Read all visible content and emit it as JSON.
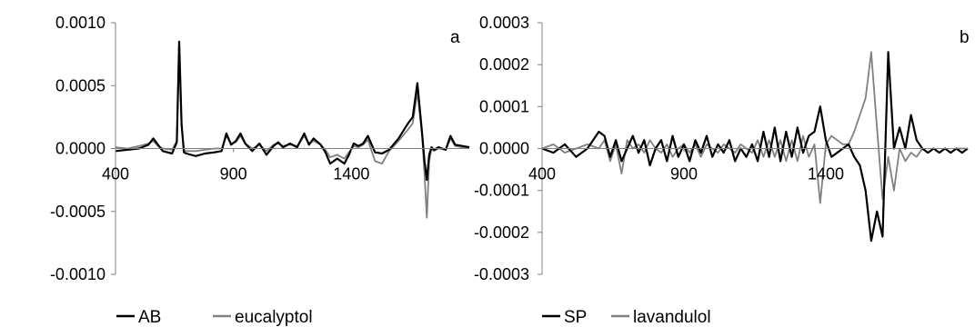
{
  "chart_data": [
    {
      "type": "line",
      "panel_label": "a",
      "xlim": [
        400,
        1900
      ],
      "x_ticks": [
        400,
        900,
        1400
      ],
      "ylim": [
        -0.001,
        0.001
      ],
      "y_ticks": [
        0.001,
        0.0005,
        0.0,
        -0.0005,
        -0.001
      ],
      "y_tick_labels": [
        "0.0010",
        "0.0005",
        "0.0000",
        "-0.0005",
        "-0.0010"
      ],
      "x_tick_labels": [
        "400",
        "900",
        "1400"
      ],
      "grid": false,
      "legend_position": "bottom-left",
      "series": [
        {
          "name": "AB",
          "color": "#000000",
          "x": [
            400,
            450,
            500,
            540,
            560,
            580,
            600,
            640,
            660,
            670,
            680,
            690,
            700,
            740,
            780,
            820,
            850,
            870,
            890,
            910,
            930,
            950,
            980,
            1010,
            1040,
            1070,
            1090,
            1110,
            1140,
            1170,
            1200,
            1220,
            1240,
            1270,
            1290,
            1310,
            1340,
            1370,
            1390,
            1410,
            1430,
            1450,
            1470,
            1500,
            1530,
            1560,
            1600,
            1640,
            1660,
            1680,
            1700,
            1710,
            1720,
            1730,
            1740,
            1750,
            1770,
            1800,
            1820,
            1840,
            1870,
            1900
          ],
          "y": [
            -2e-05,
            -1e-05,
            0.0,
            3e-05,
            8e-05,
            3e-05,
            -2e-05,
            -4e-05,
            5e-05,
            0.00085,
            0.0002,
            -3e-05,
            -4e-05,
            -6e-05,
            -4e-05,
            -3e-05,
            -2e-05,
            0.00012,
            3e-05,
            6e-05,
            0.00012,
            4e-05,
            -2e-05,
            4e-05,
            -5e-05,
            2e-05,
            5e-05,
            1e-05,
            4e-05,
            1e-05,
            0.00012,
            3e-05,
            8e-05,
            3e-05,
            -3e-05,
            -0.00012,
            -8e-05,
            -0.00012,
            -5e-05,
            4e-05,
            2e-05,
            4e-05,
            0.0001,
            -3e-05,
            -4e-05,
            -1e-05,
            8e-05,
            0.0002,
            0.00025,
            0.00052,
            0.00012,
            -0.0001,
            -0.00025,
            -5e-05,
            1e-05,
            -1e-05,
            1e-05,
            -1e-05,
            0.0001,
            3e-05,
            2e-05,
            1e-05
          ]
        },
        {
          "name": "eucalyptol",
          "color": "#808080",
          "x": [
            400,
            450,
            500,
            540,
            560,
            580,
            600,
            640,
            660,
            670,
            680,
            690,
            700,
            740,
            780,
            820,
            850,
            870,
            890,
            910,
            930,
            950,
            980,
            1010,
            1040,
            1070,
            1090,
            1110,
            1140,
            1170,
            1200,
            1220,
            1240,
            1270,
            1290,
            1310,
            1340,
            1370,
            1390,
            1410,
            1430,
            1450,
            1470,
            1500,
            1530,
            1560,
            1600,
            1640,
            1660,
            1680,
            1700,
            1710,
            1720,
            1730,
            1740,
            1750,
            1770,
            1800,
            1820,
            1840,
            1870,
            1900
          ],
          "y": [
            1e-05,
            0.0,
            2e-05,
            4e-05,
            6e-05,
            2e-05,
            0.0,
            -1e-05,
            6e-05,
            0.0008,
            0.00018,
            -1e-05,
            -2e-05,
            -2e-05,
            -1e-05,
            0.0,
            0.0,
            0.0001,
            4e-05,
            5e-05,
            0.0001,
            4e-05,
            0.0,
            3e-05,
            -2e-05,
            3e-05,
            4e-05,
            2e-05,
            3e-05,
            2e-05,
            0.0001,
            4e-05,
            6e-05,
            3e-05,
            -1e-05,
            -7e-05,
            -5e-05,
            -8e-05,
            -3e-05,
            2e-05,
            1e-05,
            3e-05,
            7e-05,
            -0.0001,
            -0.00012,
            -2e-05,
            6e-05,
            0.00015,
            0.0002,
            0.00045,
            0.0001,
            -0.0002,
            -0.00055,
            -0.0001,
            0.0,
            -2e-05,
            0.0,
            -1e-05,
            8e-05,
            2e-05,
            1e-05,
            0.0
          ]
        }
      ]
    },
    {
      "type": "line",
      "panel_label": "b",
      "xlim": [
        400,
        1900
      ],
      "x_ticks": [
        400,
        900,
        1400
      ],
      "ylim": [
        -0.0003,
        0.0003
      ],
      "y_ticks": [
        0.0003,
        0.0002,
        0.0001,
        0.0,
        -0.0001,
        -0.0002,
        -0.0003
      ],
      "y_tick_labels": [
        "0.0003",
        "0.0002",
        "0.0001",
        "0.0000",
        "-0.0001",
        "-0.0002",
        "-0.0003"
      ],
      "x_tick_labels": [
        "400",
        "900",
        "1400"
      ],
      "grid": false,
      "legend_position": "bottom-left",
      "series": [
        {
          "name": "SP",
          "color": "#000000",
          "x": [
            400,
            440,
            480,
            520,
            560,
            600,
            620,
            640,
            660,
            680,
            700,
            720,
            740,
            760,
            780,
            800,
            820,
            840,
            860,
            880,
            900,
            920,
            940,
            960,
            980,
            1000,
            1020,
            1040,
            1060,
            1080,
            1100,
            1120,
            1140,
            1160,
            1180,
            1200,
            1220,
            1240,
            1260,
            1280,
            1300,
            1320,
            1340,
            1360,
            1380,
            1400,
            1420,
            1440,
            1460,
            1480,
            1500,
            1520,
            1540,
            1560,
            1580,
            1600,
            1620,
            1640,
            1660,
            1680,
            1700,
            1720,
            1740,
            1760,
            1780,
            1800,
            1820,
            1840,
            1860,
            1880,
            1900
          ],
          "y": [
            0.0,
            -1e-05,
            1e-05,
            -2e-05,
            0.0,
            4e-05,
            3e-05,
            -2e-05,
            2e-05,
            -3e-05,
            0.0,
            3e-05,
            -1e-05,
            2e-05,
            -4e-05,
            0.0,
            2e-05,
            -3e-05,
            3e-05,
            -2e-05,
            1e-05,
            -3e-05,
            2e-05,
            -1e-05,
            3e-05,
            -2e-05,
            1e-05,
            -1e-05,
            2e-05,
            -3e-05,
            0.0,
            -2e-05,
            1e-05,
            -3e-05,
            4e-05,
            -2e-05,
            5e-05,
            -3e-05,
            4e-05,
            -2e-05,
            5e-05,
            -1e-05,
            3e-05,
            4e-05,
            0.0001,
            2e-05,
            -2e-05,
            -1e-05,
            0.0,
            1e-05,
            -2e-05,
            -4e-05,
            -0.0001,
            -0.00022,
            -0.00015,
            -0.00021,
            0.00023,
            0.0,
            5e-05,
            0.0,
            8e-05,
            2e-05,
            0.0,
            -1e-05,
            0.0,
            -1e-05,
            0.0,
            -1e-05,
            0.0,
            -1e-05,
            0.0
          ]
        },
        {
          "name": "lavandulol",
          "color": "#808080",
          "x": [
            400,
            440,
            480,
            520,
            560,
            600,
            620,
            640,
            660,
            680,
            700,
            720,
            740,
            760,
            780,
            800,
            820,
            840,
            860,
            880,
            900,
            920,
            940,
            960,
            980,
            1000,
            1020,
            1040,
            1060,
            1080,
            1100,
            1120,
            1140,
            1160,
            1180,
            1200,
            1220,
            1240,
            1260,
            1280,
            1300,
            1320,
            1340,
            1360,
            1380,
            1400,
            1420,
            1440,
            1460,
            1480,
            1500,
            1520,
            1540,
            1560,
            1580,
            1600,
            1620,
            1640,
            1660,
            1680,
            1700,
            1720,
            1740,
            1760,
            1780,
            1800,
            1820,
            1840,
            1860,
            1880,
            1900
          ],
          "y": [
            0.0,
            1e-05,
            -1e-05,
            0.0,
            1e-05,
            0.0,
            2e-05,
            -3e-05,
            1e-05,
            -6e-05,
            2e-05,
            0.0,
            1e-05,
            -1e-05,
            2e-05,
            0.0,
            -1e-05,
            1e-05,
            -2e-05,
            0.0,
            1e-05,
            -1e-05,
            1e-05,
            -2e-05,
            1e-05,
            0.0,
            -1e-05,
            1e-05,
            0.0,
            -1e-05,
            1e-05,
            0.0,
            -1e-05,
            2e-05,
            -2e-05,
            2e-05,
            -2e-05,
            2e-05,
            -3e-05,
            2e-05,
            -3e-05,
            3e-05,
            -2e-05,
            1e-05,
            -0.00013,
            1e-05,
            3e-05,
            2e-05,
            1e-05,
            1e-05,
            4e-05,
            8e-05,
            0.00012,
            0.00023,
            5e-05,
            -0.00012,
            -2e-05,
            -0.0001,
            0.0,
            -3e-05,
            -1e-05,
            -2e-05,
            0.0,
            -1e-05,
            0.0,
            -1e-05,
            0.0,
            -1e-05,
            0.0,
            0.0,
            0.0
          ]
        }
      ]
    }
  ]
}
